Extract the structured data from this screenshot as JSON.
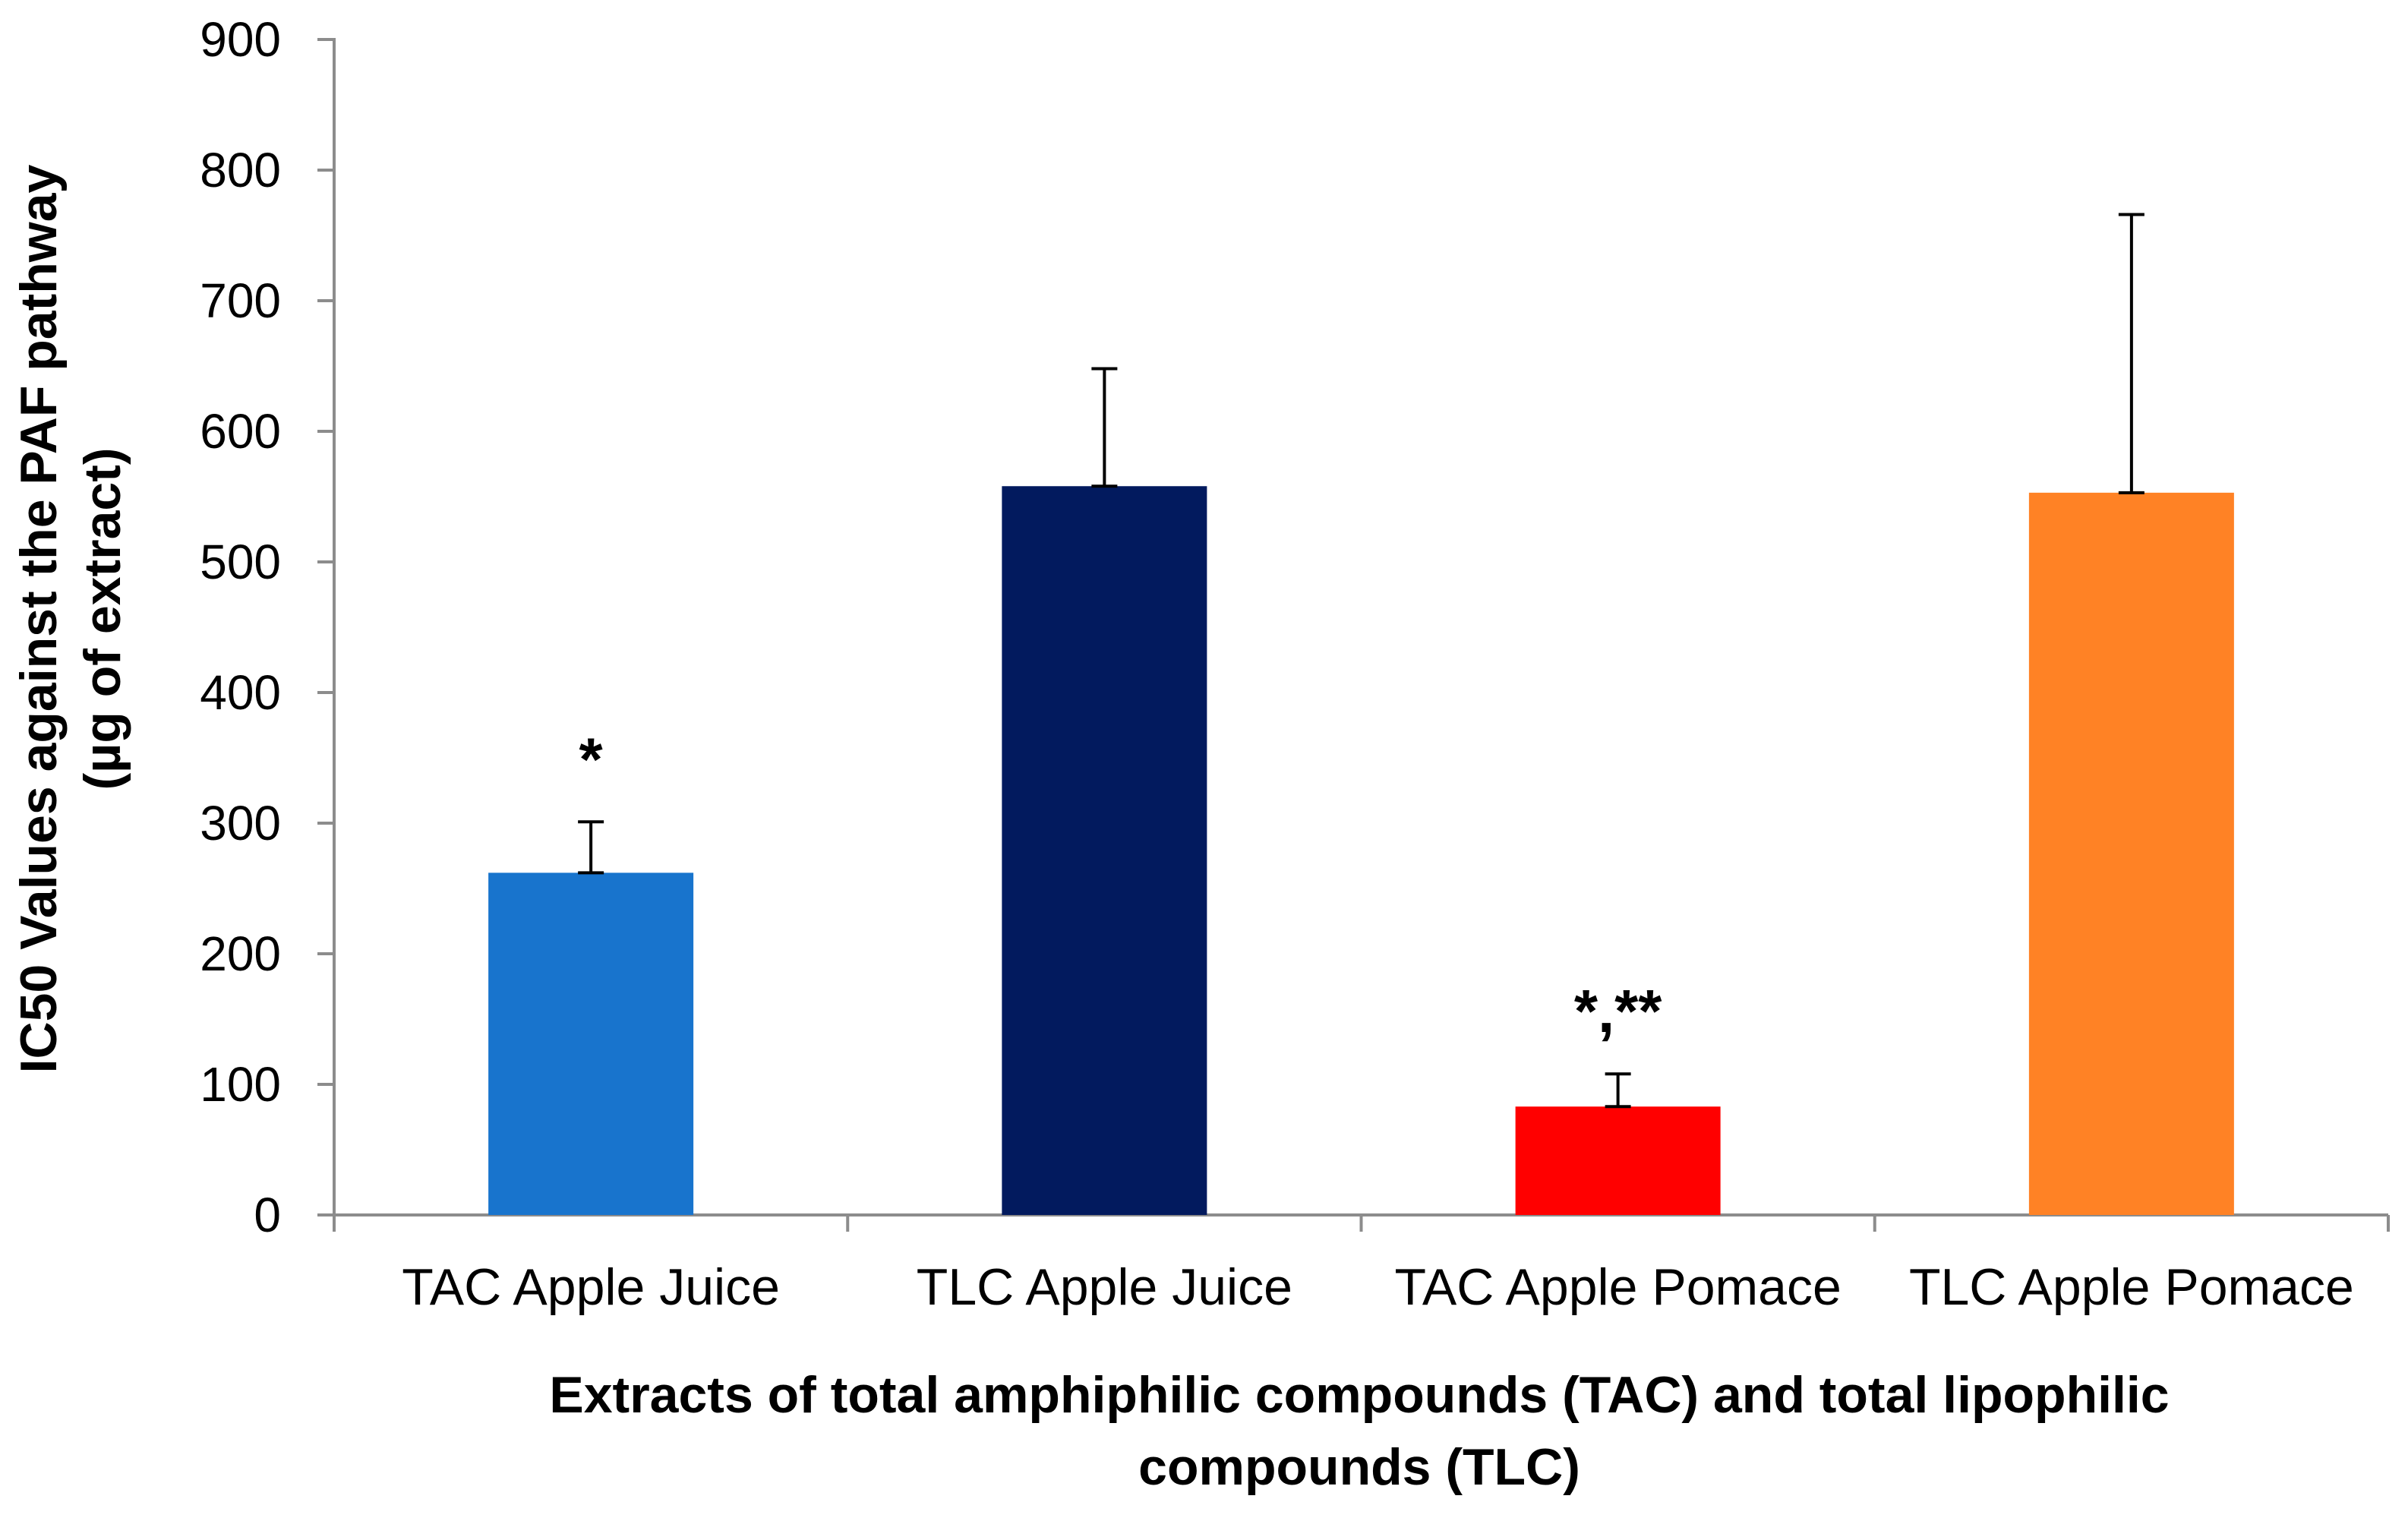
{
  "chart_data": {
    "type": "bar",
    "categories": [
      "TAC Apple Juice",
      "TLC Apple Juice",
      "TAC Apple Pomace",
      "TLC Apple Pomace"
    ],
    "values": [
      262,
      558,
      83,
      553
    ],
    "errors": [
      39,
      90,
      25,
      213
    ],
    "significance": [
      "*",
      "",
      "*,**",
      ""
    ],
    "colors": [
      "#1874CD",
      "#021A5E",
      "#FF0000",
      "#FF8225"
    ],
    "ylim": [
      0,
      900
    ],
    "yticks": [
      0,
      100,
      200,
      300,
      400,
      500,
      600,
      700,
      800,
      900
    ],
    "ylabel_lines": [
      "IC50 Values against the PAF pathway",
      "(µg of extract)"
    ],
    "xlabel_lines": [
      "Extracts of total amphiphilic compounds (TAC) and total lipophilic",
      "compounds (TLC)"
    ],
    "grid": false,
    "legend": "none"
  }
}
